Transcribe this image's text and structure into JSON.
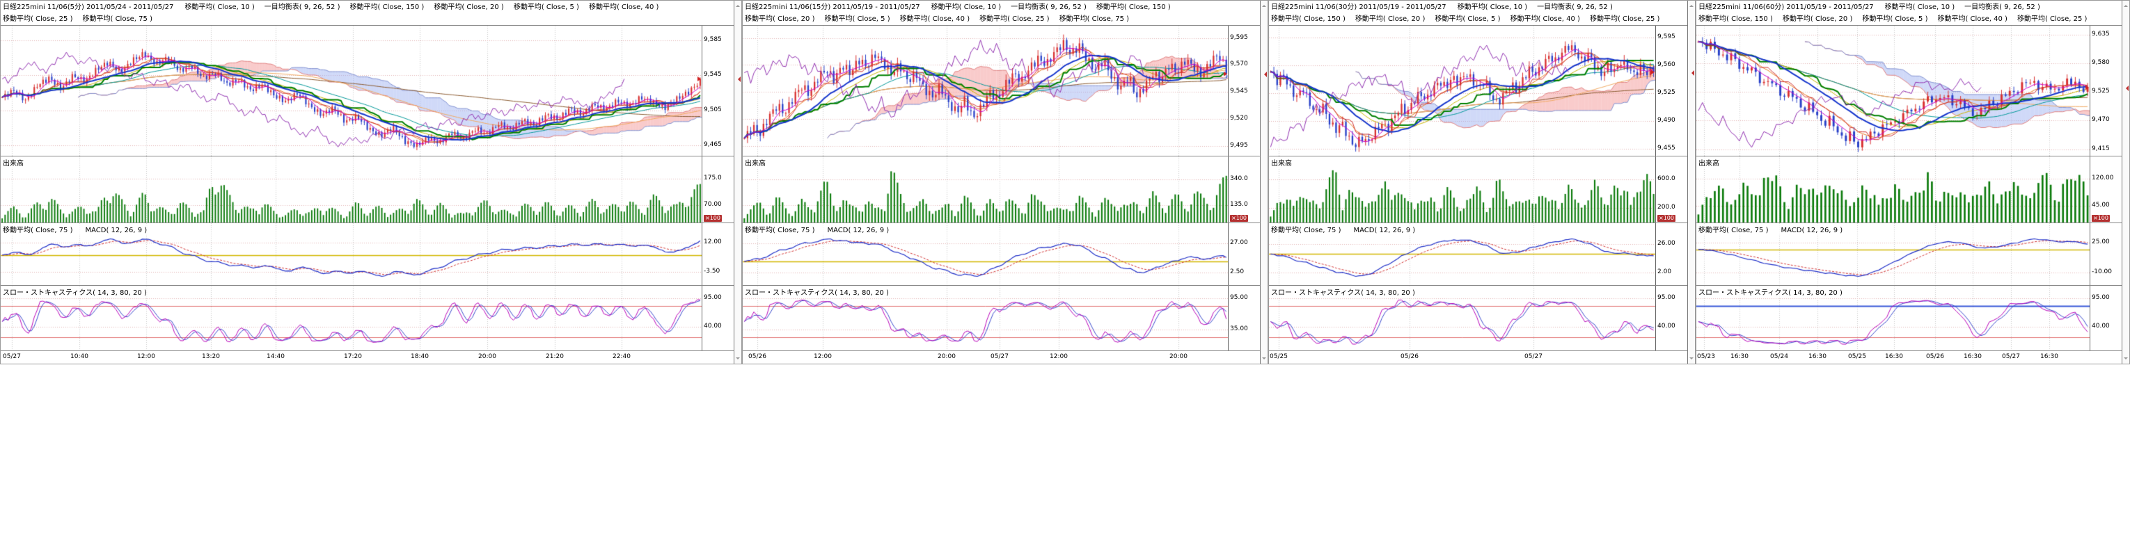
{
  "colors": {
    "candle_up": "#d83030",
    "candle_down": "#2840c8",
    "volume": "#0a7a0a",
    "kijun": "#008000",
    "tenkan": "#d03030",
    "ma20": "#1535cc",
    "ma5": "#cc00cc",
    "cloud_up": "rgba(242,140,140,0.45)",
    "cloud_down": "rgba(150,170,240,0.45)",
    "macd": "#2030c8",
    "macd_signal": "#d03030",
    "macd_zero": "#d2b800",
    "stoch_k": "#b800b8",
    "stoch_d": "#3848cc",
    "grid_v": "#c8c8c8",
    "grid_h": "#e2b0b0",
    "unit_badge": "#b43030"
  },
  "panels": [
    {
      "title": "日経225mini 11/06(5分) 2011/05/24 - 2011/05/27",
      "legend": [
        "移動平均( Close, 10 )",
        "一目均衡表( 9, 26, 52 )",
        "移動平均( Close, 150 )",
        "移動平均( Close, 20 )",
        "移動平均( Close, 5 )",
        "移動平均( Close, 40 )",
        "移動平均( Close, 25 )",
        "移動平均( Close, 75 )"
      ],
      "volume_label": "出来高",
      "volume_unit": "×100",
      "macd_labels": [
        "移動平均( Close, 75 )",
        "MACD( 12, 26, 9 )"
      ],
      "stoch_label": "スロー・ストキャスティクス( 14, 3, 80, 20 )",
      "price_ticks": [
        "9,585",
        "9,545",
        "9,505",
        "9,465"
      ],
      "volume_ticks": [
        "175.0",
        "70.00"
      ],
      "macd_ticks": [
        "12.00",
        "-3.50"
      ],
      "stoch_ticks": [
        "95.00",
        "40.00"
      ],
      "time_ticks": [
        {
          "label": "05/27",
          "pos": 0.016
        },
        {
          "label": "10:40",
          "pos": 0.112
        },
        {
          "label": "12:00",
          "pos": 0.208
        },
        {
          "label": "13:20",
          "pos": 0.3
        },
        {
          "label": "14:40",
          "pos": 0.392
        },
        {
          "label": "17:20",
          "pos": 0.502
        },
        {
          "label": "18:40",
          "pos": 0.598
        },
        {
          "label": "20:00",
          "pos": 0.694
        },
        {
          "label": "21:20",
          "pos": 0.79
        },
        {
          "label": "22:40",
          "pos": 0.886
        }
      ],
      "chart_data": {
        "type": "candlestick",
        "params": {
          "ichimoku": [
            9,
            26,
            52
          ],
          "ma": [
            5,
            10,
            20,
            25,
            40,
            75,
            150
          ],
          "macd": [
            12,
            26,
            9
          ],
          "stochastics": [
            14,
            3,
            80,
            20
          ]
        },
        "y_range": [
          9455,
          9600
        ],
        "volume_max": 220,
        "macd_range": [
          -9,
          17
        ],
        "stoch_range": [
          0,
          100
        ],
        "stoch_hlines": [
          {
            "value": 80,
            "color": "#e07070",
            "width": 1
          },
          {
            "value": 20,
            "color": "#e07070",
            "width": 1
          }
        ],
        "bars": 240,
        "wiggle": 3,
        "spread": 3,
        "close": [
          9520,
          9528,
          9516,
          9534,
          9542,
          9530,
          9545,
          9538,
          9552,
          9560,
          9548,
          9562,
          9570,
          9558,
          9565,
          9550,
          9556,
          9542,
          9548,
          9535,
          9540,
          9528,
          9535,
          9522,
          9515,
          9525,
          9510,
          9500,
          9508,
          9492,
          9498,
          9484,
          9476,
          9486,
          9470,
          9465,
          9474,
          9468,
          9480,
          9472,
          9484,
          9478,
          9490,
          9483,
          9494,
          9488,
          9500,
          9495,
          9507,
          9500,
          9512,
          9506,
          9516,
          9510,
          9520,
          9514,
          9508,
          9518,
          9526,
          9538
        ],
        "volume": [
          30,
          45,
          25,
          60,
          80,
          40,
          35,
          55,
          30,
          120,
          70,
          40,
          90,
          50,
          35,
          60,
          45,
          30,
          170,
          90,
          55,
          40,
          65,
          35,
          25,
          45,
          30,
          55,
          40,
          25,
          60,
          35,
          50,
          30,
          45,
          70,
          40,
          55,
          35,
          25,
          50,
          65,
          40,
          30,
          55,
          45,
          60,
          35,
          50,
          40,
          70,
          45,
          55,
          65,
          40,
          80,
          60,
          50,
          90,
          110
        ]
      }
    },
    {
      "title": "日経225mini 11/06(15分) 2011/05/19 - 2011/05/27",
      "legend": [
        "移動平均( Close, 10 )",
        "一目均衡表( 9, 26, 52 )",
        "移動平均( Close, 150 )",
        "移動平均( Close, 20 )",
        "移動平均( Close, 5 )",
        "移動平均( Close, 40 )",
        "移動平均( Close, 25 )",
        "移動平均( Close, 75 )"
      ],
      "volume_label": "出来高",
      "volume_unit": "×100",
      "macd_labels": [
        "移動平均( Close, 75 )",
        "MACD( 12, 26, 9 )"
      ],
      "stoch_label": "スロー・ストキャスティクス( 14, 3, 80, 20 )",
      "price_ticks": [
        "9,595",
        "9,570",
        "9,545",
        "9,520",
        "9,495"
      ],
      "volume_ticks": [
        "340.0",
        "135.0"
      ],
      "macd_ticks": [
        "27.00",
        "2.50"
      ],
      "stoch_ticks": [
        "95.00",
        "35.00"
      ],
      "time_ticks": [
        {
          "label": "05/26",
          "pos": 0.03
        },
        {
          "label": "12:00",
          "pos": 0.165
        },
        {
          "label": "20:00",
          "pos": 0.42
        },
        {
          "label": "05/27",
          "pos": 0.53
        },
        {
          "label": "12:00",
          "pos": 0.652
        },
        {
          "label": "20:00",
          "pos": 0.898
        }
      ],
      "chart_data": {
        "type": "candlestick",
        "params": {
          "ichimoku": [
            9,
            26,
            52
          ],
          "ma": [
            5,
            10,
            20,
            25,
            40,
            75,
            150
          ],
          "macd": [
            12,
            26,
            9
          ],
          "stochastics": [
            14,
            3,
            80,
            20
          ]
        },
        "y_range": [
          9487,
          9605
        ],
        "volume_max": 430,
        "macd_range": [
          -6,
          36
        ],
        "stoch_range": [
          0,
          100
        ],
        "stoch_hlines": [
          {
            "value": 80,
            "color": "#e07070",
            "width": 1
          },
          {
            "value": 20,
            "color": "#e07070",
            "width": 1
          }
        ],
        "bars": 152,
        "wiggle": 4,
        "spread": 4,
        "close": [
          9502,
          9512,
          9506,
          9522,
          9532,
          9525,
          9540,
          9550,
          9543,
          9558,
          9566,
          9556,
          9570,
          9562,
          9575,
          9568,
          9580,
          9572,
          9562,
          9570,
          9555,
          9562,
          9548,
          9540,
          9550,
          9534,
          9526,
          9538,
          9520,
          9530,
          9545,
          9538,
          9552,
          9562,
          9555,
          9568,
          9576,
          9570,
          9582,
          9590,
          9580,
          9588,
          9574,
          9565,
          9575,
          9558,
          9548,
          9560,
          9540,
          9550,
          9562,
          9556,
          9570,
          9563,
          9575,
          9568,
          9560,
          9572,
          9580,
          9565
        ],
        "volume": [
          60,
          90,
          120,
          80,
          150,
          100,
          70,
          130,
          90,
          180,
          240,
          120,
          160,
          90,
          110,
          140,
          80,
          120,
          330,
          180,
          120,
          90,
          140,
          100,
          70,
          120,
          80,
          150,
          110,
          60,
          130,
          90,
          160,
          110,
          80,
          190,
          120,
          140,
          90,
          70,
          120,
          160,
          100,
          80,
          140,
          110,
          150,
          90,
          130,
          100,
          170,
          120,
          140,
          160,
          100,
          200,
          150,
          120,
          220,
          260
        ]
      }
    },
    {
      "title": "日経225mini 11/06(30分) 2011/05/19 - 2011/05/27",
      "legend": [
        "移動平均( Close, 10 )",
        "一目均衡表( 9, 26, 52 )",
        "移動平均( Close, 150 )",
        "移動平均( Close, 20 )",
        "移動平均( Close, 5 )",
        "移動平均( Close, 40 )",
        "移動平均( Close, 25 )",
        "移動平均( Close, 75 )"
      ],
      "volume_label": "出来高",
      "volume_unit": "×100",
      "macd_labels": [
        "移動平均( Close, 75 )",
        "MACD( 12, 26, 9 )"
      ],
      "stoch_label": "スロー・ストキャスティクス( 14, 3, 80, 20 )",
      "price_ticks": [
        "9,595",
        "9,560",
        "9,525",
        "9,490",
        "9,455"
      ],
      "volume_ticks": [
        "600.0",
        "200.0"
      ],
      "macd_ticks": [
        "26.00",
        "2.00"
      ],
      "stoch_ticks": [
        "95.00",
        "40.00"
      ],
      "time_ticks": [
        {
          "label": "05/25",
          "pos": 0.025
        },
        {
          "label": "05/26",
          "pos": 0.364
        },
        {
          "label": "05/27",
          "pos": 0.684
        }
      ],
      "chart_data": {
        "type": "candlestick",
        "params": {
          "ichimoku": [
            9,
            26,
            52
          ],
          "ma": [
            5,
            10,
            20,
            25,
            40,
            75,
            150
          ],
          "macd": [
            12,
            26,
            9
          ],
          "stochastics": [
            14,
            3,
            80,
            20
          ]
        },
        "y_range": [
          9448,
          9608
        ],
        "volume_max": 760,
        "macd_range": [
          -6,
          35
        ],
        "stoch_range": [
          0,
          100
        ],
        "stoch_hlines": [
          {
            "value": 80,
            "color": "#e07070",
            "width": 1
          },
          {
            "value": 20,
            "color": "#e07070",
            "width": 1
          }
        ],
        "bars": 118,
        "wiggle": 5,
        "spread": 5,
        "close": [
          9552,
          9540,
          9548,
          9530,
          9520,
          9532,
          9512,
          9500,
          9510,
          9490,
          9478,
          9488,
          9468,
          9458,
          9470,
          9462,
          9476,
          9488,
          9480,
          9495,
          9508,
          9500,
          9515,
          9525,
          9516,
          9530,
          9540,
          9532,
          9545,
          9538,
          9550,
          9542,
          9530,
          9542,
          9520,
          9512,
          9524,
          9536,
          9528,
          9545,
          9556,
          9548,
          9562,
          9572,
          9564,
          9578,
          9585,
          9576,
          9565,
          9575,
          9558,
          9548,
          9560,
          9552,
          9565,
          9558,
          9548,
          9558,
          9550,
          9556
        ],
        "volume": [
          150,
          220,
          180,
          300,
          380,
          250,
          200,
          320,
          260,
          420,
          590,
          300,
          380,
          240,
          280,
          350,
          200,
          300,
          610,
          380,
          280,
          220,
          340,
          260,
          180,
          300,
          200,
          380,
          280,
          160,
          320,
          230,
          390,
          280,
          200,
          460,
          300,
          350,
          230,
          180,
          300,
          390,
          260,
          200,
          350,
          280,
          380,
          230,
          320,
          260,
          420,
          300,
          350,
          390,
          260,
          480,
          370,
          300,
          520,
          600
        ]
      }
    },
    {
      "title": "日経225mini 11/06(60分) 2011/05/19 - 2011/05/27",
      "legend": [
        "移動平均( Close, 10 )",
        "一目均衡表( 9, 26, 52 )",
        "移動平均( Close, 150 )",
        "移動平均( Close, 20 )",
        "移動平均( Close, 5 )",
        "移動平均( Close, 40 )",
        "移動平均( Close, 25 )",
        "移動平均( Close, 75 )"
      ],
      "volume_label": "出来高",
      "volume_unit": "×100",
      "macd_labels": [
        "移動平均( Close, 75 )",
        "MACD( 12, 26, 9 )"
      ],
      "stoch_label": "スロー・ストキャスティクス( 14, 3, 80, 20 )",
      "price_ticks": [
        "9,635",
        "9,580",
        "9,525",
        "9,470",
        "9,415"
      ],
      "volume_ticks": [
        "120.00",
        "45.00"
      ],
      "macd_ticks": [
        "25.00",
        "-10.00"
      ],
      "stoch_ticks": [
        "95.00",
        "40.00"
      ],
      "time_ticks": [
        {
          "label": "05/23",
          "pos": 0.02
        },
        {
          "label": "16:30",
          "pos": 0.11
        },
        {
          "label": "05/24",
          "pos": 0.21
        },
        {
          "label": "16:30",
          "pos": 0.308
        },
        {
          "label": "05/25",
          "pos": 0.408
        },
        {
          "label": "16:30",
          "pos": 0.503
        },
        {
          "label": "05/26",
          "pos": 0.607
        },
        {
          "label": "16:30",
          "pos": 0.702
        },
        {
          "label": "05/27",
          "pos": 0.8
        },
        {
          "label": "16:30",
          "pos": 0.898
        }
      ],
      "chart_data": {
        "type": "candlestick",
        "params": {
          "ichimoku": [
            9,
            26,
            52
          ],
          "ma": [
            5,
            10,
            20,
            25,
            40,
            75,
            150
          ],
          "macd": [
            12,
            26,
            9
          ],
          "stochastics": [
            14,
            3,
            80,
            20
          ]
        },
        "y_range": [
          9405,
          9650
        ],
        "volume_max": 150,
        "macd_range": [
          -22,
          37
        ],
        "stoch_range": [
          0,
          100
        ],
        "stoch_hlines": [
          {
            "value": 80,
            "color": "#e07070",
            "width": 1
          },
          {
            "value": 20,
            "color": "#e07070",
            "width": 1
          },
          {
            "value": 80,
            "color": "#3858d8",
            "width": 2
          }
        ],
        "bars": 96,
        "wiggle": 6,
        "spread": 7,
        "close": [
          9622,
          9612,
          9618,
          9600,
          9588,
          9598,
          9578,
          9565,
          9575,
          9552,
          9540,
          9550,
          9528,
          9515,
          9528,
          9505,
          9490,
          9502,
          9478,
          9462,
          9475,
          9450,
          9432,
          9445,
          9420,
          9430,
          9448,
          9440,
          9458,
          9470,
          9462,
          9480,
          9495,
          9486,
          9505,
          9515,
          9505,
          9520,
          9512,
          9498,
          9510,
          9488,
          9478,
          9492,
          9505,
          9498,
          9515,
          9528,
          9520,
          9538,
          9548,
          9540,
          9530,
          9542,
          9525,
          9535,
          9548,
          9542,
          9530,
          9528
        ],
        "volume": [
          40,
          60,
          45,
          75,
          95,
          60,
          50,
          80,
          65,
          105,
          118,
          75,
          95,
          60,
          70,
          85,
          50,
          75,
          112,
          95,
          70,
          55,
          85,
          65,
          45,
          75,
          50,
          95,
          70,
          40,
          80,
          58,
          98,
          70,
          50,
          115,
          75,
          88,
          58,
          45,
          75,
          98,
          65,
          50,
          88,
          70,
          95,
          58,
          80,
          65,
          105,
          75,
          88,
          98,
          65,
          120,
          92,
          75,
          108,
          112
        ]
      }
    }
  ]
}
